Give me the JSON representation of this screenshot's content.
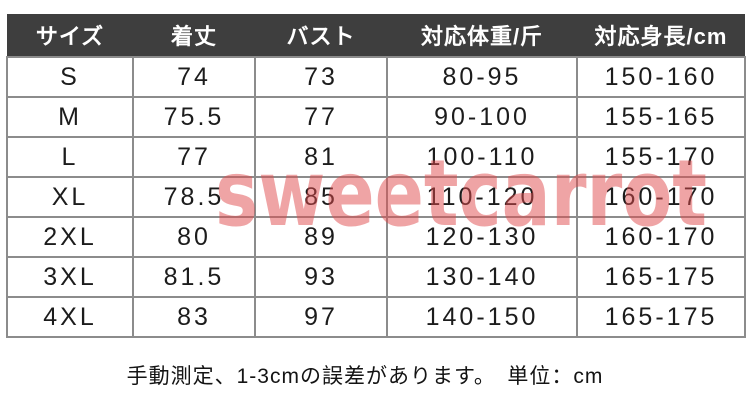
{
  "table": {
    "headers": [
      "サイズ",
      "着丈",
      "バスト",
      "対応体重/斤",
      "対応身長/cm"
    ],
    "rows": [
      [
        "S",
        "74",
        "73",
        "80-95",
        "150-160"
      ],
      [
        "M",
        "75.5",
        "77",
        "90-100",
        "155-165"
      ],
      [
        "L",
        "77",
        "81",
        "100-110",
        "155-170"
      ],
      [
        "XL",
        "78.5",
        "85",
        "110-120",
        "160-170"
      ],
      [
        "2XL",
        "80",
        "89",
        "120-130",
        "160-170"
      ],
      [
        "3XL",
        "81.5",
        "93",
        "130-140",
        "165-175"
      ],
      [
        "4XL",
        "83",
        "97",
        "140-150",
        "165-175"
      ]
    ]
  },
  "watermark": {
    "text": "sweetcarrot",
    "color": "#e04a4c"
  },
  "footnote": "手動測定、1-3cmの誤差があります。　単位：cm",
  "colors": {
    "header_bg": "#3e3e3e",
    "header_text": "#ffffff",
    "border": "#8c8c8c",
    "body_text": "#1c1c1c",
    "watermark_pink": "#f2a4a6"
  }
}
